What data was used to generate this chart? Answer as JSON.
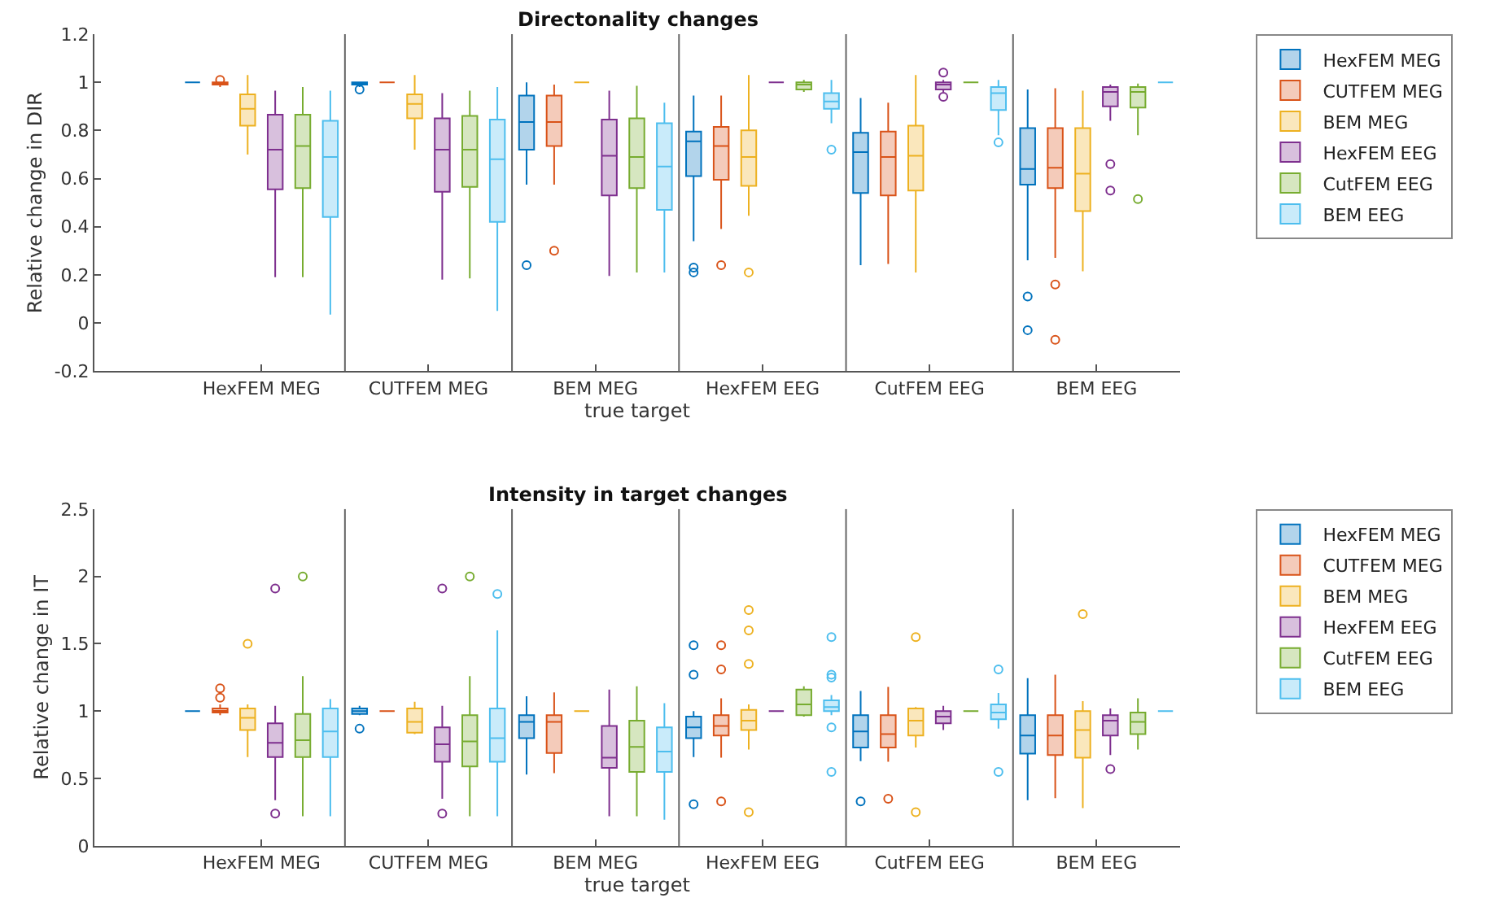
{
  "chart_data": [
    {
      "type": "box",
      "title": "Directonality changes",
      "xlabel": "true target",
      "ylabel": "Relative change in DIR",
      "categories": [
        "HexFEM MEG",
        "CUTFEM MEG",
        "BEM MEG",
        "HexFEM EEG",
        "CutFEM EEG",
        "BEM EEG"
      ],
      "ylim": [
        -0.2,
        1.2
      ],
      "yticks": [
        -0.2,
        0,
        0.2,
        0.4,
        0.6,
        0.8,
        1,
        1.2
      ],
      "legend": "top right",
      "series": [
        {
          "name": "HexFEM MEG",
          "color": "#0072bd",
          "boxes": [
            {
              "low": 1,
              "q1": 1,
              "median": 1,
              "q3": 1,
              "high": 1
            },
            {
              "low": 0.98,
              "q1": 0.99,
              "median": 1,
              "q3": 1,
              "high": 1,
              "outliers": [
                0.97
              ]
            },
            {
              "low": 0.575,
              "q1": 0.72,
              "median": 0.835,
              "q3": 0.945,
              "high": 1,
              "outliers": [
                0.24
              ]
            },
            {
              "low": 0.34,
              "q1": 0.61,
              "median": 0.755,
              "q3": 0.795,
              "high": 0.945,
              "outliers": [
                0.23,
                0.21
              ]
            },
            {
              "low": 0.24,
              "q1": 0.54,
              "median": 0.71,
              "q3": 0.79,
              "high": 0.935
            },
            {
              "low": 0.26,
              "q1": 0.575,
              "median": 0.64,
              "q3": 0.81,
              "high": 0.97,
              "outliers": [
                0.11,
                -0.03
              ]
            }
          ]
        },
        {
          "name": "CUTFEM MEG",
          "color": "#d95319",
          "boxes": [
            {
              "low": 0.98,
              "q1": 0.99,
              "median": 1,
              "q3": 1,
              "high": 1,
              "outliers": [
                1.01
              ]
            },
            {
              "low": 1,
              "q1": 1,
              "median": 1,
              "q3": 1,
              "high": 1
            },
            {
              "low": 0.575,
              "q1": 0.735,
              "median": 0.835,
              "q3": 0.945,
              "high": 0.99,
              "outliers": [
                0.3
              ]
            },
            {
              "low": 0.39,
              "q1": 0.595,
              "median": 0.735,
              "q3": 0.815,
              "high": 0.945,
              "outliers": [
                0.24
              ]
            },
            {
              "low": 0.245,
              "q1": 0.53,
              "median": 0.69,
              "q3": 0.795,
              "high": 0.915
            },
            {
              "low": 0.27,
              "q1": 0.56,
              "median": 0.645,
              "q3": 0.81,
              "high": 0.975,
              "outliers": [
                0.16,
                -0.07
              ]
            }
          ]
        },
        {
          "name": "BEM MEG",
          "color": "#edb120",
          "boxes": [
            {
              "low": 0.7,
              "q1": 0.82,
              "median": 0.89,
              "q3": 0.95,
              "high": 1.03
            },
            {
              "low": 0.72,
              "q1": 0.85,
              "median": 0.91,
              "q3": 0.95,
              "high": 1.03
            },
            {
              "low": 1,
              "q1": 1,
              "median": 1,
              "q3": 1,
              "high": 1
            },
            {
              "low": 0.445,
              "q1": 0.57,
              "median": 0.69,
              "q3": 0.8,
              "high": 1.03,
              "outliers": [
                0.21
              ]
            },
            {
              "low": 0.21,
              "q1": 0.55,
              "median": 0.695,
              "q3": 0.82,
              "high": 1.03
            },
            {
              "low": 0.215,
              "q1": 0.465,
              "median": 0.62,
              "q3": 0.81,
              "high": 0.965
            }
          ]
        },
        {
          "name": "HexFEM EEG",
          "color": "#7e2f8e",
          "boxes": [
            {
              "low": 0.19,
              "q1": 0.555,
              "median": 0.72,
              "q3": 0.865,
              "high": 0.965
            },
            {
              "low": 0.18,
              "q1": 0.545,
              "median": 0.72,
              "q3": 0.85,
              "high": 0.955
            },
            {
              "low": 0.195,
              "q1": 0.53,
              "median": 0.695,
              "q3": 0.845,
              "high": 0.965
            },
            {
              "low": 1,
              "q1": 1,
              "median": 1,
              "q3": 1,
              "high": 1
            },
            {
              "low": 0.96,
              "q1": 0.97,
              "median": 0.99,
              "q3": 1,
              "high": 1.01,
              "outliers": [
                1.04,
                0.94
              ]
            },
            {
              "low": 0.84,
              "q1": 0.9,
              "median": 0.96,
              "q3": 0.98,
              "high": 0.99,
              "outliers": [
                0.66,
                0.55
              ]
            }
          ]
        },
        {
          "name": "CutFEM EEG",
          "color": "#77ac30",
          "boxes": [
            {
              "low": 0.19,
              "q1": 0.56,
              "median": 0.735,
              "q3": 0.865,
              "high": 0.98
            },
            {
              "low": 0.185,
              "q1": 0.565,
              "median": 0.72,
              "q3": 0.86,
              "high": 0.965
            },
            {
              "low": 0.21,
              "q1": 0.56,
              "median": 0.69,
              "q3": 0.85,
              "high": 0.985
            },
            {
              "low": 0.96,
              "q1": 0.97,
              "median": 0.99,
              "q3": 1,
              "high": 1.01
            },
            {
              "low": 1,
              "q1": 1,
              "median": 1,
              "q3": 1,
              "high": 1
            },
            {
              "low": 0.78,
              "q1": 0.895,
              "median": 0.96,
              "q3": 0.98,
              "high": 0.995,
              "outliers": [
                0.515
              ]
            }
          ]
        },
        {
          "name": "BEM EEG",
          "color": "#4dbeee",
          "boxes": [
            {
              "low": 0.035,
              "q1": 0.44,
              "median": 0.69,
              "q3": 0.84,
              "high": 0.965
            },
            {
              "low": 0.05,
              "q1": 0.42,
              "median": 0.68,
              "q3": 0.845,
              "high": 0.98
            },
            {
              "low": 0.21,
              "q1": 0.47,
              "median": 0.65,
              "q3": 0.83,
              "high": 0.915
            },
            {
              "low": 0.83,
              "q1": 0.89,
              "median": 0.92,
              "q3": 0.955,
              "high": 1.01,
              "outliers": [
                0.72
              ]
            },
            {
              "low": 0.78,
              "q1": 0.885,
              "median": 0.955,
              "q3": 0.98,
              "high": 1.01,
              "outliers": [
                0.75
              ]
            },
            {
              "low": 1,
              "q1": 1,
              "median": 1,
              "q3": 1,
              "high": 1
            }
          ]
        }
      ]
    },
    {
      "type": "box",
      "title": "Intensity in target changes",
      "xlabel": "true target",
      "ylabel": "Relative change in IT",
      "categories": [
        "HexFEM MEG",
        "CUTFEM MEG",
        "BEM MEG",
        "HexFEM EEG",
        "CutFEM EEG",
        "BEM EEG"
      ],
      "ylim": [
        0,
        2.5
      ],
      "yticks": [
        0,
        0.5,
        1,
        1.5,
        2,
        2.5
      ],
      "legend": "top right",
      "series": [
        {
          "name": "HexFEM MEG",
          "color": "#0072bd",
          "boxes": [
            {
              "low": 1,
              "q1": 1,
              "median": 1,
              "q3": 1,
              "high": 1
            },
            {
              "low": 0.97,
              "q1": 0.98,
              "median": 1,
              "q3": 1.02,
              "high": 1.04,
              "outliers": [
                0.87
              ]
            },
            {
              "low": 0.53,
              "q1": 0.8,
              "median": 0.92,
              "q3": 0.97,
              "high": 1.11
            },
            {
              "low": 0.66,
              "q1": 0.8,
              "median": 0.88,
              "q3": 0.96,
              "high": 1.0,
              "outliers": [
                1.49,
                1.27,
                0.31
              ]
            },
            {
              "low": 0.63,
              "q1": 0.73,
              "median": 0.85,
              "q3": 0.97,
              "high": 1.15,
              "outliers": [
                0.33
              ]
            },
            {
              "low": 0.34,
              "q1": 0.685,
              "median": 0.82,
              "q3": 0.97,
              "high": 1.245
            }
          ]
        },
        {
          "name": "CUTFEM MEG",
          "color": "#d95319",
          "boxes": [
            {
              "low": 0.97,
              "q1": 0.99,
              "median": 1,
              "q3": 1.02,
              "high": 1.05,
              "outliers": [
                1.17,
                1.1
              ]
            },
            {
              "low": 1,
              "q1": 1,
              "median": 1,
              "q3": 1,
              "high": 1
            },
            {
              "low": 0.54,
              "q1": 0.69,
              "median": 0.92,
              "q3": 0.97,
              "high": 1.14
            },
            {
              "low": 0.655,
              "q1": 0.82,
              "median": 0.89,
              "q3": 0.97,
              "high": 1.095,
              "outliers": [
                1.49,
                1.31,
                0.33
              ]
            },
            {
              "low": 0.625,
              "q1": 0.73,
              "median": 0.83,
              "q3": 0.97,
              "high": 1.18,
              "outliers": [
                0.35
              ]
            },
            {
              "low": 0.355,
              "q1": 0.675,
              "median": 0.82,
              "q3": 0.97,
              "high": 1.27
            }
          ]
        },
        {
          "name": "BEM MEG",
          "color": "#edb120",
          "boxes": [
            {
              "low": 0.66,
              "q1": 0.86,
              "median": 0.95,
              "q3": 1.02,
              "high": 1.05,
              "outliers": [
                1.5
              ]
            },
            {
              "low": 0.83,
              "q1": 0.84,
              "median": 0.92,
              "q3": 1.02,
              "high": 1.07
            },
            {
              "low": 1,
              "q1": 1,
              "median": 1,
              "q3": 1,
              "high": 1
            },
            {
              "low": 0.715,
              "q1": 0.86,
              "median": 0.93,
              "q3": 1.01,
              "high": 1.05,
              "outliers": [
                1.75,
                1.6,
                1.35,
                0.25
              ]
            },
            {
              "low": 0.73,
              "q1": 0.82,
              "median": 0.93,
              "q3": 1.02,
              "high": 1.03,
              "outliers": [
                1.55,
                0.25
              ]
            },
            {
              "low": 0.28,
              "q1": 0.655,
              "median": 0.86,
              "q3": 1.0,
              "high": 1.075,
              "outliers": [
                1.72
              ]
            }
          ]
        },
        {
          "name": "HexFEM EEG",
          "color": "#7e2f8e",
          "boxes": [
            {
              "low": 0.34,
              "q1": 0.66,
              "median": 0.765,
              "q3": 0.91,
              "high": 1.04,
              "outliers": [
                1.91,
                0.24
              ]
            },
            {
              "low": 0.35,
              "q1": 0.625,
              "median": 0.755,
              "q3": 0.88,
              "high": 1.04,
              "outliers": [
                1.91,
                0.24
              ]
            },
            {
              "low": 0.22,
              "q1": 0.58,
              "median": 0.655,
              "q3": 0.89,
              "high": 1.16
            },
            {
              "low": 1,
              "q1": 1,
              "median": 1,
              "q3": 1,
              "high": 1
            },
            {
              "low": 0.86,
              "q1": 0.91,
              "median": 0.96,
              "q3": 1.0,
              "high": 1.04
            },
            {
              "low": 0.675,
              "q1": 0.82,
              "median": 0.93,
              "q3": 0.97,
              "high": 1.02,
              "outliers": [
                0.57
              ]
            }
          ]
        },
        {
          "name": "CutFEM EEG",
          "color": "#77ac30",
          "boxes": [
            {
              "low": 0.22,
              "q1": 0.66,
              "median": 0.785,
              "q3": 0.98,
              "high": 1.26,
              "outliers": [
                2.0
              ]
            },
            {
              "low": 0.22,
              "q1": 0.59,
              "median": 0.775,
              "q3": 0.97,
              "high": 1.26,
              "outliers": [
                2.0
              ]
            },
            {
              "low": 0.22,
              "q1": 0.55,
              "median": 0.735,
              "q3": 0.93,
              "high": 1.185
            },
            {
              "low": 0.96,
              "q1": 0.97,
              "median": 1.05,
              "q3": 1.16,
              "high": 1.185
            },
            {
              "low": 1,
              "q1": 1,
              "median": 1,
              "q3": 1,
              "high": 1
            },
            {
              "low": 0.715,
              "q1": 0.83,
              "median": 0.92,
              "q3": 0.99,
              "high": 1.095
            }
          ]
        },
        {
          "name": "BEM EEG",
          "color": "#4dbeee",
          "boxes": [
            {
              "low": 0.22,
              "q1": 0.66,
              "median": 0.85,
              "q3": 1.02,
              "high": 1.09
            },
            {
              "low": 0.22,
              "q1": 0.625,
              "median": 0.8,
              "q3": 1.02,
              "high": 1.6,
              "outliers": [
                1.87
              ]
            },
            {
              "low": 0.195,
              "q1": 0.55,
              "median": 0.7,
              "q3": 0.88,
              "high": 1.06
            },
            {
              "low": 0.97,
              "q1": 1.0,
              "median": 1.03,
              "q3": 1.08,
              "high": 1.12,
              "outliers": [
                1.55,
                1.27,
                1.25,
                0.88,
                0.55
              ]
            },
            {
              "low": 0.87,
              "q1": 0.94,
              "median": 0.99,
              "q3": 1.05,
              "high": 1.135,
              "outliers": [
                1.31,
                0.55
              ]
            },
            {
              "low": 1,
              "q1": 1,
              "median": 1,
              "q3": 1,
              "high": 1
            }
          ]
        }
      ]
    }
  ]
}
